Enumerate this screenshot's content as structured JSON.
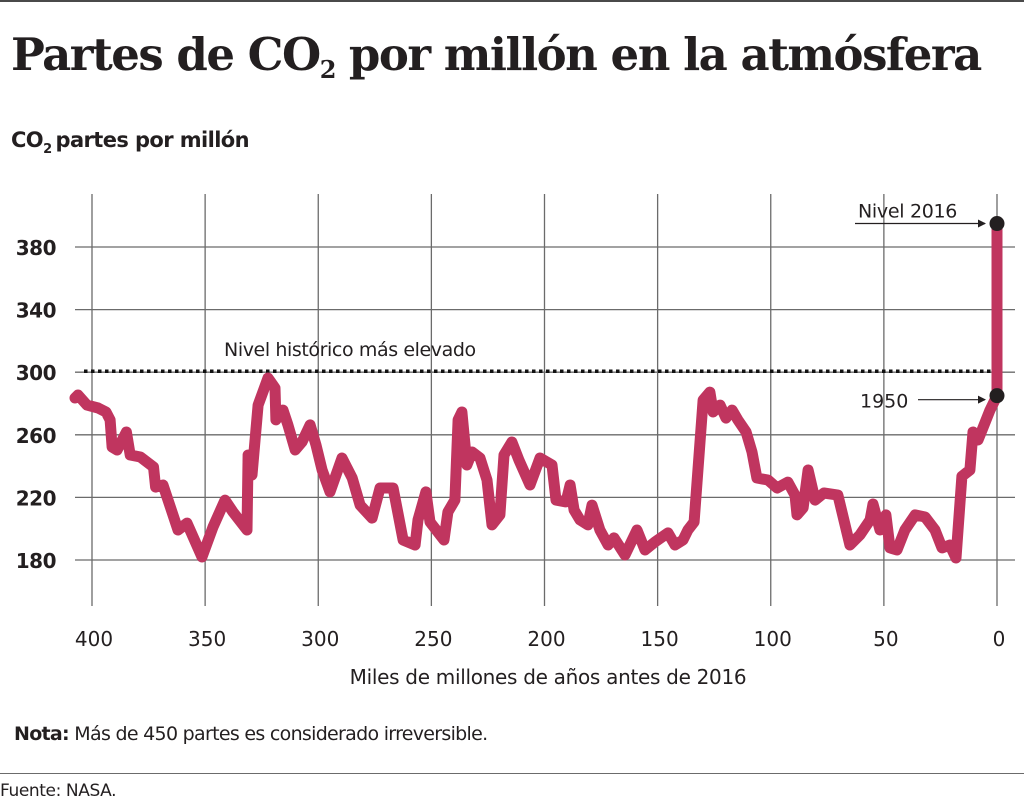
{
  "header": {
    "title_part1": "Partes de CO",
    "title_sub": "2",
    "title_part2": "por millón en la atmósfera",
    "subtitle_part1": "CO",
    "subtitle_sub": "2",
    "subtitle_part2": "partes por millón"
  },
  "footer": {
    "note_label": "Nota:",
    "note_text": " Más de 450 partes es considerado irreversible.",
    "source": "Fuente: NASA."
  },
  "colors": {
    "line": "#c0355f",
    "text": "#231f20",
    "grid": "#6b6b6b",
    "marker": "#231f20"
  },
  "chart_data": {
    "type": "line",
    "title": "Partes de CO2 por millón en la atmósfera",
    "ylabel": "CO2 partes por millón",
    "xlabel": "Miles de millones de años antes de 2016",
    "xlim": [
      410,
      0
    ],
    "ylim": [
      150,
      405
    ],
    "x_ticks": [
      400,
      350,
      300,
      250,
      200,
      150,
      100,
      50,
      0
    ],
    "y_ticks": [
      180,
      220,
      260,
      300,
      340,
      380
    ],
    "grid": true,
    "x_reversed": true,
    "reference_line": {
      "value": 300,
      "label": "Nivel histórico más elevado",
      "style": "dotted"
    },
    "annotations": [
      {
        "label": "Nivel 2016",
        "x": 0,
        "y": 395
      },
      {
        "label": "1950",
        "x": 0,
        "y": 285
      }
    ],
    "series": [
      {
        "name": "CO2",
        "points": [
          [
            407.5,
            283.5
          ],
          [
            406.2,
            285.4
          ],
          [
            402.2,
            279.0
          ],
          [
            397.3,
            277.1
          ],
          [
            393.8,
            274.6
          ],
          [
            392.0,
            269.5
          ],
          [
            391.1,
            252.2
          ],
          [
            388.9,
            250.3
          ],
          [
            384.8,
            261.8
          ],
          [
            383.1,
            247.1
          ],
          [
            378.6,
            245.8
          ],
          [
            372.8,
            239.4
          ],
          [
            371.9,
            226.6
          ],
          [
            368.6,
            227.9
          ],
          [
            362.0,
            199.2
          ],
          [
            358.0,
            203.6
          ],
          [
            351.4,
            181.9
          ],
          [
            346.5,
            201.1
          ],
          [
            341.2,
            218.3
          ],
          [
            337.7,
            210.7
          ],
          [
            331.5,
            199.2
          ],
          [
            331.0,
            247.1
          ],
          [
            329.3,
            234.3
          ],
          [
            326.6,
            279.0
          ],
          [
            322.2,
            296.3
          ],
          [
            319.1,
            289.9
          ],
          [
            318.7,
            269.5
          ],
          [
            315.6,
            275.8
          ],
          [
            313.4,
            266.3
          ],
          [
            310.2,
            250.3
          ],
          [
            307.2,
            255.4
          ],
          [
            303.6,
            266.3
          ],
          [
            301.0,
            253.5
          ],
          [
            298.3,
            237.5
          ],
          [
            294.8,
            223.5
          ],
          [
            289.5,
            245.2
          ],
          [
            285.0,
            232.4
          ],
          [
            281.5,
            215.1
          ],
          [
            276.2,
            206.8
          ],
          [
            272.7,
            226.0
          ],
          [
            266.9,
            226.0
          ],
          [
            262.5,
            192.8
          ],
          [
            257.2,
            189.6
          ],
          [
            255.9,
            205.6
          ],
          [
            252.4,
            223.5
          ],
          [
            250.6,
            204.3
          ],
          [
            244.4,
            192.8
          ],
          [
            242.7,
            210.7
          ],
          [
            239.6,
            218.3
          ],
          [
            238.2,
            269.5
          ],
          [
            236.5,
            274.6
          ],
          [
            234.3,
            240.7
          ],
          [
            232.0,
            249.0
          ],
          [
            228.5,
            245.2
          ],
          [
            225.4,
            231.1
          ],
          [
            223.2,
            202.4
          ],
          [
            219.7,
            208.8
          ],
          [
            217.9,
            247.1
          ],
          [
            214.4,
            255.4
          ],
          [
            211.3,
            243.9
          ],
          [
            206.4,
            227.9
          ],
          [
            202.0,
            245.2
          ],
          [
            196.7,
            240.7
          ],
          [
            194.9,
            218.3
          ],
          [
            190.5,
            217.1
          ],
          [
            188.7,
            227.9
          ],
          [
            186.9,
            211.9
          ],
          [
            184.3,
            205.6
          ],
          [
            180.8,
            202.4
          ],
          [
            179.0,
            215.1
          ],
          [
            175.5,
            199.2
          ],
          [
            171.9,
            189.6
          ],
          [
            169.3,
            194.1
          ],
          [
            164.4,
            183.2
          ],
          [
            159.1,
            199.2
          ],
          [
            155.6,
            186.4
          ],
          [
            151.2,
            191.5
          ],
          [
            145.4,
            197.3
          ],
          [
            142.3,
            189.6
          ],
          [
            138.8,
            192.8
          ],
          [
            136.6,
            199.2
          ],
          [
            133.9,
            204.3
          ],
          [
            129.9,
            282.2
          ],
          [
            126.9,
            287.3
          ],
          [
            125.5,
            274.6
          ],
          [
            122.4,
            279.0
          ],
          [
            119.8,
            270.7
          ],
          [
            117.1,
            275.8
          ],
          [
            114.5,
            269.5
          ],
          [
            110.9,
            261.8
          ],
          [
            108.3,
            249.0
          ],
          [
            106.1,
            232.4
          ],
          [
            101.2,
            231.1
          ],
          [
            97.2,
            226.0
          ],
          [
            92.4,
            229.8
          ],
          [
            89.3,
            221.5
          ],
          [
            88.4,
            208.8
          ],
          [
            85.7,
            213.3
          ],
          [
            83.5,
            237.5
          ],
          [
            80.4,
            218.3
          ],
          [
            76.5,
            222.8
          ],
          [
            70.3,
            221.5
          ],
          [
            65.0,
            189.6
          ],
          [
            60.6,
            196.0
          ],
          [
            56.1,
            205.6
          ],
          [
            54.8,
            215.8
          ],
          [
            51.7,
            199.2
          ],
          [
            49.1,
            208.8
          ],
          [
            47.3,
            187.7
          ],
          [
            44.2,
            186.4
          ],
          [
            40.7,
            199.2
          ],
          [
            36.2,
            208.8
          ],
          [
            31.8,
            207.5
          ],
          [
            27.4,
            199.2
          ],
          [
            24.3,
            187.7
          ],
          [
            20.8,
            189.6
          ],
          [
            18.1,
            181.3
          ],
          [
            15.5,
            233.5
          ],
          [
            12.0,
            237.5
          ],
          [
            10.6,
            261.8
          ],
          [
            8.4,
            256.7
          ],
          [
            6.6,
            263.1
          ],
          [
            3.1,
            275.8
          ],
          [
            0,
            285
          ],
          [
            0,
            395
          ]
        ]
      }
    ]
  }
}
